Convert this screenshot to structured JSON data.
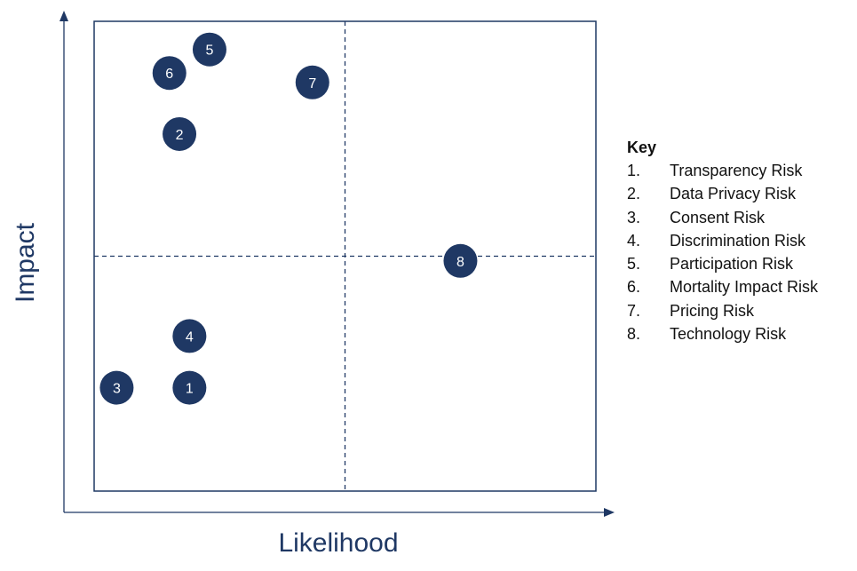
{
  "chart_data": {
    "type": "scatter",
    "title": "",
    "xlabel": "Likelihood",
    "ylabel": "Impact",
    "xlim": [
      0,
      100
    ],
    "ylim": [
      0,
      100
    ],
    "grid": false,
    "quadrant_dividers": {
      "x": 50,
      "y": 50
    },
    "points": [
      {
        "id": "1",
        "x": 19,
        "y": 22
      },
      {
        "id": "2",
        "x": 17,
        "y": 76
      },
      {
        "id": "3",
        "x": 4.5,
        "y": 22
      },
      {
        "id": "4",
        "x": 19,
        "y": 33
      },
      {
        "id": "5",
        "x": 23,
        "y": 94
      },
      {
        "id": "6",
        "x": 15,
        "y": 89
      },
      {
        "id": "7",
        "x": 43.5,
        "y": 87
      },
      {
        "id": "8",
        "x": 73,
        "y": 49
      }
    ],
    "legend_position": "right"
  },
  "key": {
    "title": "Key",
    "items": [
      {
        "num": "1.",
        "label": "Transparency Risk"
      },
      {
        "num": "2.",
        "label": "Data Privacy Risk"
      },
      {
        "num": "3.",
        "label": "Consent Risk"
      },
      {
        "num": "4.",
        "label": "Discrimination Risk"
      },
      {
        "num": "5.",
        "label": "Participation Risk"
      },
      {
        "num": "6.",
        "label": "Mortality Impact Risk"
      },
      {
        "num": "7.",
        "label": "Pricing Risk"
      },
      {
        "num": "8.",
        "label": "Technology Risk"
      }
    ]
  },
  "colors": {
    "bubble": "#1f3864",
    "bubble_text": "#ffffff",
    "axis": "#1f3864",
    "frame": "#1f3864",
    "divider": "#1f3864"
  }
}
